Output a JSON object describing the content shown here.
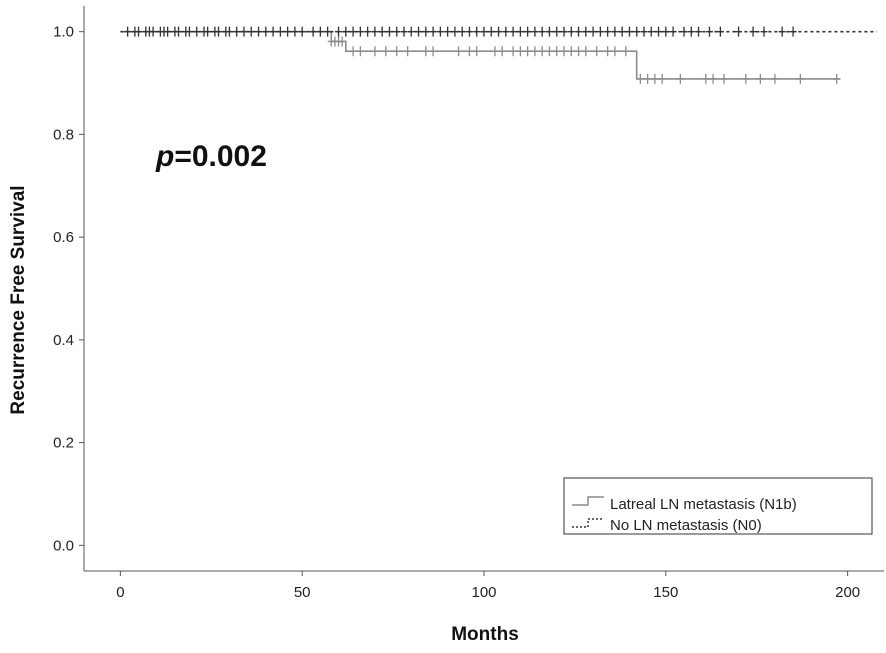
{
  "chart_data": {
    "type": "line",
    "xlabel": "Months",
    "ylabel": "Recurrence Free Survival",
    "xlim": [
      -10,
      210
    ],
    "ylim": [
      -0.05,
      1.05
    ],
    "xticks": [
      0,
      50,
      100,
      150,
      200
    ],
    "yticks": [
      0.0,
      0.2,
      0.4,
      0.6,
      0.8,
      1.0
    ],
    "xtick_labels": [
      "0",
      "50",
      "100",
      "150",
      "200"
    ],
    "ytick_labels": [
      "0.0",
      "0.2",
      "0.4",
      "0.6",
      "0.8",
      "1.0"
    ],
    "annotation": {
      "italic": "p",
      "text": "=0.002"
    },
    "grid": false,
    "legend_position": "bottom-right",
    "series": [
      {
        "name": "Latreal LN metastasis (N1b)",
        "style": "solid",
        "color": "#8c8c8c",
        "steps": [
          [
            0,
            1.0
          ],
          [
            58,
            1.0
          ],
          [
            58,
            0.981
          ],
          [
            62,
            0.981
          ],
          [
            62,
            0.962
          ],
          [
            142,
            0.962
          ],
          [
            142,
            0.908
          ],
          [
            198,
            0.908
          ]
        ],
        "censored": [
          [
            58,
            0.981
          ],
          [
            59,
            0.981
          ],
          [
            60,
            0.981
          ],
          [
            61,
            0.981
          ],
          [
            64,
            0.962
          ],
          [
            66,
            0.962
          ],
          [
            70,
            0.962
          ],
          [
            73,
            0.962
          ],
          [
            76,
            0.962
          ],
          [
            79,
            0.962
          ],
          [
            84,
            0.962
          ],
          [
            86,
            0.962
          ],
          [
            93,
            0.962
          ],
          [
            96,
            0.962
          ],
          [
            98,
            0.962
          ],
          [
            103,
            0.962
          ],
          [
            105,
            0.962
          ],
          [
            108,
            0.962
          ],
          [
            110,
            0.962
          ],
          [
            112,
            0.962
          ],
          [
            114,
            0.962
          ],
          [
            116,
            0.962
          ],
          [
            118,
            0.962
          ],
          [
            120,
            0.962
          ],
          [
            122,
            0.962
          ],
          [
            124,
            0.962
          ],
          [
            126,
            0.962
          ],
          [
            128,
            0.962
          ],
          [
            131,
            0.962
          ],
          [
            134,
            0.962
          ],
          [
            136,
            0.962
          ],
          [
            139,
            0.962
          ],
          [
            143,
            0.908
          ],
          [
            145,
            0.908
          ],
          [
            147,
            0.908
          ],
          [
            149,
            0.908
          ],
          [
            154,
            0.908
          ],
          [
            161,
            0.908
          ],
          [
            163,
            0.908
          ],
          [
            166,
            0.908
          ],
          [
            172,
            0.908
          ],
          [
            176,
            0.908
          ],
          [
            180,
            0.908
          ],
          [
            187,
            0.908
          ],
          [
            197,
            0.908
          ]
        ]
      },
      {
        "name": "No LN metastasis (N0)",
        "style": "dashed",
        "color": "#333333",
        "steps": [
          [
            0,
            1.0
          ],
          [
            208,
            1.0
          ]
        ],
        "censored": [
          [
            2,
            1.0
          ],
          [
            4,
            1.0
          ],
          [
            5,
            1.0
          ],
          [
            7,
            1.0
          ],
          [
            8,
            1.0
          ],
          [
            9,
            1.0
          ],
          [
            11,
            1.0
          ],
          [
            12,
            1.0
          ],
          [
            13,
            1.0
          ],
          [
            15,
            1.0
          ],
          [
            16,
            1.0
          ],
          [
            18,
            1.0
          ],
          [
            19,
            1.0
          ],
          [
            21,
            1.0
          ],
          [
            23,
            1.0
          ],
          [
            24,
            1.0
          ],
          [
            26,
            1.0
          ],
          [
            27,
            1.0
          ],
          [
            29,
            1.0
          ],
          [
            30,
            1.0
          ],
          [
            32,
            1.0
          ],
          [
            34,
            1.0
          ],
          [
            36,
            1.0
          ],
          [
            38,
            1.0
          ],
          [
            40,
            1.0
          ],
          [
            42,
            1.0
          ],
          [
            44,
            1.0
          ],
          [
            46,
            1.0
          ],
          [
            48,
            1.0
          ],
          [
            50,
            1.0
          ],
          [
            53,
            1.0
          ],
          [
            55,
            1.0
          ],
          [
            57,
            1.0
          ],
          [
            60,
            1.0
          ],
          [
            62,
            1.0
          ],
          [
            64,
            1.0
          ],
          [
            66,
            1.0
          ],
          [
            68,
            1.0
          ],
          [
            70,
            1.0
          ],
          [
            72,
            1.0
          ],
          [
            74,
            1.0
          ],
          [
            76,
            1.0
          ],
          [
            78,
            1.0
          ],
          [
            80,
            1.0
          ],
          [
            82,
            1.0
          ],
          [
            84,
            1.0
          ],
          [
            86,
            1.0
          ],
          [
            88,
            1.0
          ],
          [
            90,
            1.0
          ],
          [
            92,
            1.0
          ],
          [
            94,
            1.0
          ],
          [
            96,
            1.0
          ],
          [
            98,
            1.0
          ],
          [
            100,
            1.0
          ],
          [
            102,
            1.0
          ],
          [
            104,
            1.0
          ],
          [
            106,
            1.0
          ],
          [
            108,
            1.0
          ],
          [
            110,
            1.0
          ],
          [
            112,
            1.0
          ],
          [
            114,
            1.0
          ],
          [
            116,
            1.0
          ],
          [
            118,
            1.0
          ],
          [
            120,
            1.0
          ],
          [
            122,
            1.0
          ],
          [
            124,
            1.0
          ],
          [
            126,
            1.0
          ],
          [
            128,
            1.0
          ],
          [
            130,
            1.0
          ],
          [
            132,
            1.0
          ],
          [
            134,
            1.0
          ],
          [
            136,
            1.0
          ],
          [
            138,
            1.0
          ],
          [
            140,
            1.0
          ],
          [
            142,
            1.0
          ],
          [
            144,
            1.0
          ],
          [
            146,
            1.0
          ],
          [
            148,
            1.0
          ],
          [
            150,
            1.0
          ],
          [
            152,
            1.0
          ],
          [
            155,
            1.0
          ],
          [
            157,
            1.0
          ],
          [
            159,
            1.0
          ],
          [
            162,
            1.0
          ],
          [
            165,
            1.0
          ],
          [
            170,
            1.0
          ],
          [
            174,
            1.0
          ],
          [
            177,
            1.0
          ],
          [
            182,
            1.0
          ],
          [
            185,
            1.0
          ]
        ]
      }
    ]
  }
}
